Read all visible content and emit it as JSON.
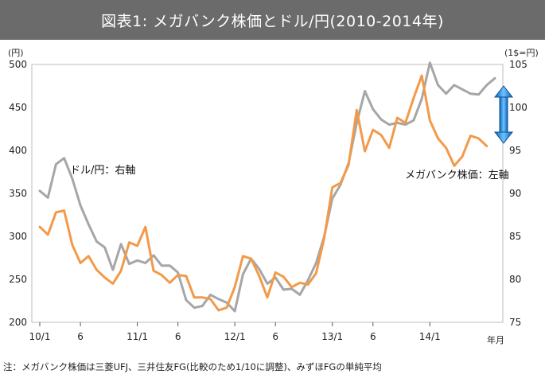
{
  "title": "図表1: メガバンク株価とドル/円(2010-2014年)",
  "note": "注：メガバンク株価は三菱UFJ、三井住友FG(比較のため1/10に調整)、みずほFGの単純平均",
  "chart_data": {
    "type": "line",
    "title": "図表1: メガバンク株価とドル/円(2010-2014年)",
    "left_axis": {
      "unit_label": "(円)",
      "range": [
        200,
        500
      ],
      "ticks": [
        "200",
        "250",
        "300",
        "350",
        "400",
        "450",
        "500"
      ]
    },
    "right_axis": {
      "unit_label": "(1$=円)",
      "range": [
        75,
        105
      ],
      "ticks": [
        "75",
        "80",
        "85",
        "90",
        "95",
        "100",
        "105"
      ]
    },
    "x_axis": {
      "unit_label": "年月",
      "ticks": [
        {
          "i": 0,
          "label": "10/1"
        },
        {
          "i": 5,
          "label": "6"
        },
        {
          "i": 12,
          "label": "11/1"
        },
        {
          "i": 17,
          "label": "6"
        },
        {
          "i": 24,
          "label": "12/1"
        },
        {
          "i": 29,
          "label": "6"
        },
        {
          "i": 36,
          "label": "13/1"
        },
        {
          "i": 41,
          "label": "6"
        },
        {
          "i": 48,
          "label": "14/1"
        }
      ]
    },
    "series": [
      {
        "name": "ドル/円",
        "axis": "right",
        "color": "#a6a6a6",
        "values": [
          90.3,
          89.5,
          93.4,
          94.1,
          91.7,
          88.6,
          86.4,
          84.4,
          83.7,
          81.1,
          84.1,
          81.8,
          82.2,
          81.9,
          82.8,
          81.6,
          81.6,
          80.8,
          77.6,
          76.7,
          76.9,
          78.2,
          77.7,
          77.3,
          76.3,
          80.6,
          82.4,
          81.2,
          79.5,
          80.2,
          78.8,
          78.9,
          78.2,
          79.9,
          81.9,
          85.0,
          89.4,
          91.0,
          93.5,
          98.2,
          101.9,
          99.8,
          98.6,
          98.0,
          98.2,
          98.0,
          98.5,
          101.0,
          105.2,
          102.6,
          101.6,
          102.6,
          102.1,
          101.6,
          101.5,
          102.6,
          103.4
        ]
      },
      {
        "name": "メガバンク株価",
        "axis": "left",
        "color": "#f29a4a",
        "values": [
          311,
          302,
          328,
          330,
          290,
          269,
          277,
          261,
          252,
          245,
          260,
          293,
          289,
          311,
          260,
          255,
          246,
          255,
          254,
          229,
          229,
          227,
          214,
          217,
          241,
          277,
          274,
          254,
          229,
          258,
          253,
          241,
          246,
          244,
          257,
          298,
          357,
          362,
          383,
          447,
          399,
          424,
          418,
          403,
          438,
          432,
          461,
          487,
          435,
          414,
          403,
          382,
          393,
          417,
          414,
          405
        ]
      }
    ],
    "annotations": [
      {
        "text": "ドル/円：右軸"
      },
      {
        "text": "メガバンク株価：左軸"
      }
    ]
  }
}
